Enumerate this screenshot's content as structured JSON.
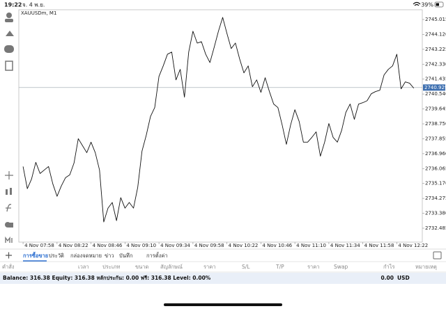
{
  "status_bar": {
    "time": "19:22",
    "date": "จ. 4 พ.ย.",
    "battery": "39%"
  },
  "chart_data": {
    "type": "line",
    "title": "XAUUSDm, M1",
    "color": "#111111",
    "values": [
      2736.19,
      2734.86,
      2735.44,
      2736.44,
      2735.77,
      2735.98,
      2736.19,
      2735.15,
      2734.4,
      2735.02,
      2735.52,
      2735.69,
      2736.4,
      2737.86,
      2737.44,
      2737.02,
      2737.65,
      2737.02,
      2735.98,
      2732.86,
      2733.69,
      2734.03,
      2732.94,
      2734.32,
      2733.69,
      2734.03,
      2733.69,
      2734.94,
      2737.11,
      2738.06,
      2739.19,
      2739.73,
      2741.6,
      2742.23,
      2742.93,
      2743.06,
      2741.39,
      2742.02,
      2740.35,
      2743.06,
      2744.31,
      2743.6,
      2743.68,
      2742.93,
      2742.43,
      2743.35,
      2744.31,
      2745.14,
      2744.18,
      2743.27,
      2743.6,
      2742.64,
      2741.81,
      2742.23,
      2740.98,
      2741.39,
      2740.64,
      2741.52,
      2740.69,
      2739.94,
      2739.73,
      2738.69,
      2737.52,
      2738.69,
      2739.6,
      2738.9,
      2737.65,
      2737.65,
      2737.94,
      2738.27,
      2736.81,
      2737.65,
      2738.77,
      2737.94,
      2737.65,
      2738.35,
      2739.44,
      2739.94,
      2739.02,
      2739.94,
      2740.02,
      2740.14,
      2740.56,
      2740.69,
      2740.77,
      2741.69,
      2742.02,
      2742.23,
      2742.93,
      2740.85,
      2741.27,
      2741.19,
      2740.89
    ],
    "price_line": 2740.929,
    "price_line_color": "#9aa3ad",
    "price_label_color": "#3d6fb0",
    "ylim": [
      2731.65,
      2745.6
    ],
    "yticks": [
      2732.485,
      {
        "value": 2733.38,
        "label": "2733.380"
      },
      2734.275,
      {
        "value": 2735.17,
        "label": "2735.170"
      },
      2736.065,
      {
        "value": 2736.96,
        "label": "2736.960"
      },
      2737.855,
      {
        "value": 2738.75,
        "label": "2738.750"
      },
      2739.645,
      {
        "value": 2740.54,
        "label": "2740.540"
      },
      2741.435,
      {
        "value": 2742.33,
        "label": "2742.330"
      },
      2743.225,
      {
        "value": 2744.12,
        "label": "2744.120"
      },
      2745.015
    ],
    "xlim": [
      -1,
      94
    ],
    "xticks": [
      {
        "value": 0,
        "label": "4 Nov 07:58"
      },
      {
        "value": 8,
        "label": "4 Nov 08:22"
      },
      {
        "value": 16,
        "label": "4 Nov 08:46"
      },
      {
        "value": 24,
        "label": "4 Nov 09:10"
      },
      {
        "value": 32,
        "label": "4 Nov 09:34"
      },
      {
        "value": 40,
        "label": "4 Nov 09:58"
      },
      {
        "value": 48,
        "label": "4 Nov 10:22"
      },
      {
        "value": 56,
        "label": "4 Nov 10:46"
      },
      {
        "value": 64,
        "label": "4 Nov 11:10"
      },
      {
        "value": 72,
        "label": "4 Nov 11:34"
      },
      {
        "value": 80,
        "label": "4 Nov 11:58"
      },
      {
        "value": 88,
        "label": "4 Nov 12:22"
      }
    ]
  },
  "panel": {
    "tabs": [
      "การซื้อขาย",
      "ประวัติ",
      "กล่องจดหมาย",
      "ข่าว",
      "บันทึก",
      "การตั้งค่า"
    ],
    "columns": [
      "คำสั่ง",
      "เวลา",
      "ประเภท",
      "ขนาด",
      "สัญลักษณ์",
      "ราคา",
      "S/L",
      "T/P",
      "ราคา",
      "Swap",
      "กำไร",
      "หมายเหตุ"
    ],
    "balance": "Balance: 316.38 Equity: 316.38 หลักประกัน: 0.00 ฟรี: 316.38 Level: 0.00%",
    "profit": "0.00",
    "currency": "USD"
  }
}
